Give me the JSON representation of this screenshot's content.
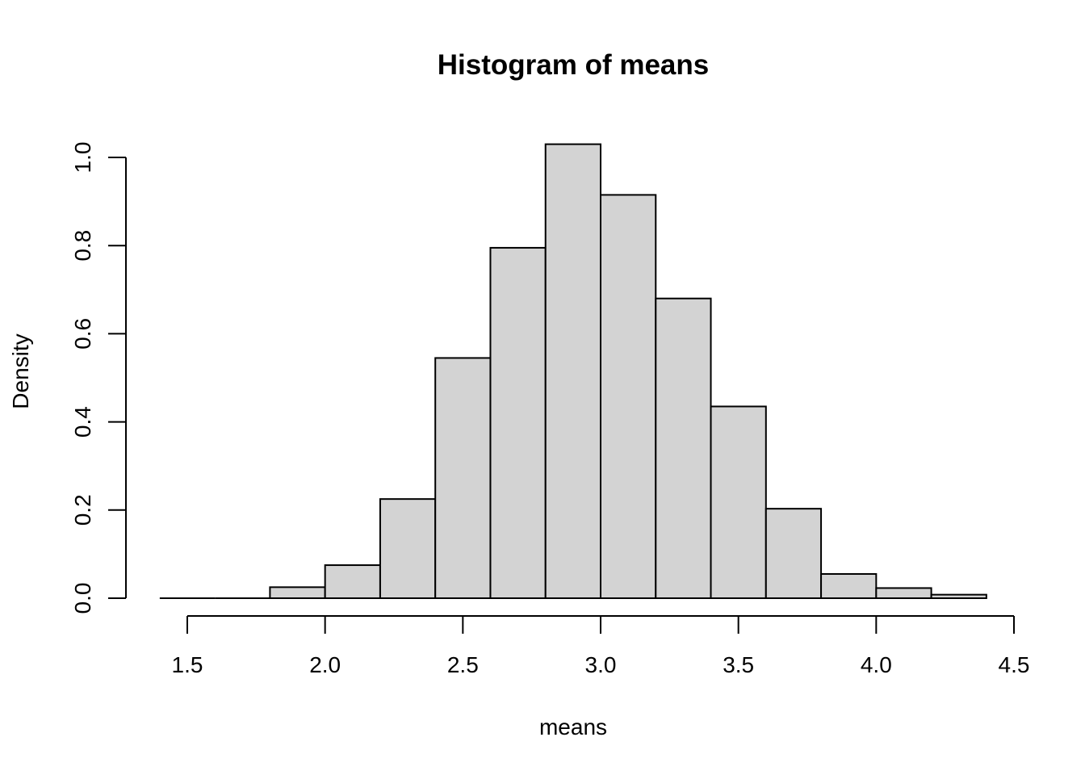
{
  "chart_data": {
    "type": "bar",
    "title": "Histogram of means",
    "xlabel": "means",
    "ylabel": "Density",
    "bins": [
      {
        "x0": 1.4,
        "x1": 1.6,
        "density": 0.0
      },
      {
        "x0": 1.6,
        "x1": 1.8,
        "density": 0.0
      },
      {
        "x0": 1.8,
        "x1": 2.0,
        "density": 0.025
      },
      {
        "x0": 2.0,
        "x1": 2.2,
        "density": 0.075
      },
      {
        "x0": 2.2,
        "x1": 2.4,
        "density": 0.225
      },
      {
        "x0": 2.4,
        "x1": 2.6,
        "density": 0.545
      },
      {
        "x0": 2.6,
        "x1": 2.8,
        "density": 0.795
      },
      {
        "x0": 2.8,
        "x1": 3.0,
        "density": 1.03
      },
      {
        "x0": 3.0,
        "x1": 3.2,
        "density": 0.915
      },
      {
        "x0": 3.2,
        "x1": 3.4,
        "density": 0.68
      },
      {
        "x0": 3.4,
        "x1": 3.6,
        "density": 0.435
      },
      {
        "x0": 3.6,
        "x1": 3.8,
        "density": 0.203
      },
      {
        "x0": 3.8,
        "x1": 4.0,
        "density": 0.055
      },
      {
        "x0": 4.0,
        "x1": 4.2,
        "density": 0.023
      },
      {
        "x0": 4.2,
        "x1": 4.4,
        "density": 0.008
      }
    ],
    "x_ticks": [
      1.5,
      2.0,
      2.5,
      3.0,
      3.5,
      4.0,
      4.5
    ],
    "x_tick_labels": [
      "1.5",
      "2.0",
      "2.5",
      "3.0",
      "3.5",
      "4.0",
      "4.5"
    ],
    "y_ticks": [
      0.0,
      0.2,
      0.4,
      0.6,
      0.8,
      1.0
    ],
    "y_tick_labels": [
      "0.0",
      "0.2",
      "0.4",
      "0.6",
      "0.8",
      "1.0"
    ],
    "xlim": [
      1.5,
      4.5
    ],
    "ylim": [
      0,
      1.0
    ],
    "grid": false,
    "legend": "none",
    "colors": {
      "bar_fill": "#d3d3d3",
      "bar_stroke": "#000000"
    }
  }
}
